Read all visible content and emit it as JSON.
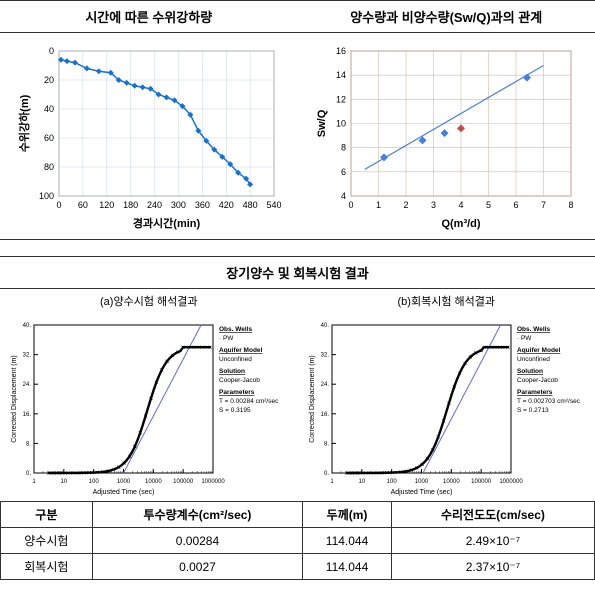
{
  "top": {
    "chart1": {
      "title": "시간에 따른 수위강하량",
      "type": "line",
      "xlabel": "경과시간(min)",
      "ylabel": "수위강하(m)",
      "xlim": [
        0,
        540
      ],
      "xtick_step": 60,
      "ylim_top": 0,
      "ylim_bottom": 100,
      "ytick_step": 20,
      "line_color": "#1f6fc4",
      "grid_color": "#c7d6e6",
      "background": "#ffffff",
      "points": [
        [
          5,
          6
        ],
        [
          20,
          7
        ],
        [
          40,
          8
        ],
        [
          70,
          12
        ],
        [
          100,
          14
        ],
        [
          130,
          15
        ],
        [
          150,
          20
        ],
        [
          170,
          22
        ],
        [
          190,
          24
        ],
        [
          210,
          25
        ],
        [
          230,
          26
        ],
        [
          250,
          30
        ],
        [
          270,
          32
        ],
        [
          290,
          34
        ],
        [
          310,
          38
        ],
        [
          330,
          44
        ],
        [
          350,
          55
        ],
        [
          370,
          62
        ],
        [
          390,
          68
        ],
        [
          410,
          73
        ],
        [
          430,
          78
        ],
        [
          450,
          84
        ],
        [
          470,
          88
        ],
        [
          480,
          92
        ]
      ]
    },
    "chart2": {
      "title": "양수량과 비양수량(Sw/Q)과의 관계",
      "type": "scatter-line",
      "xlabel": "Q(m³/d)",
      "ylabel": "Sw/Q",
      "xlim": [
        0,
        8
      ],
      "xtick_step": 1,
      "ylim": [
        4,
        16
      ],
      "ytick_step": 2,
      "grid_color": "#d9b9a6",
      "axis_color": "#888888",
      "background": "#ffffff",
      "blue_points": [
        [
          1.2,
          7.2
        ],
        [
          2.6,
          8.6
        ],
        [
          3.4,
          9.2
        ],
        [
          6.4,
          13.8
        ]
      ],
      "red_points": [
        [
          4.0,
          9.6
        ]
      ],
      "blue_color": "#4a7fd6",
      "red_color": "#c0504d",
      "fit_line": {
        "x1": 0.5,
        "y1": 6.2,
        "x2": 7.0,
        "y2": 14.8,
        "color": "#4a7fd6"
      }
    }
  },
  "section2": {
    "header": "장기양수 및 회복시험 결과",
    "sub_a": "(a)양수시험 해석결과",
    "sub_b": "(b)회복시험 해석결과",
    "graph_style": {
      "axis_color": "#000000",
      "data_color": "#000000",
      "fit_color": "#5b6fc9",
      "background": "#ffffff",
      "xlabel": "Adjusted Time (sec)",
      "ylabel": "Corrected Displacement (m)",
      "x_decades": [
        1,
        10,
        100,
        1000,
        10000,
        100000,
        1000000
      ],
      "y_range": [
        0,
        40
      ],
      "y_tick_step": 8
    },
    "params_a": {
      "obs_h": "Obs. Wells",
      "obs_v": "· PW",
      "aq_h": "Aquifer Model",
      "aq_v": "Unconfined",
      "sol_h": "Solution",
      "sol_v": "Cooper-Jacob",
      "par_h": "Parameters",
      "par_v1": "T = 0.00284 cm²/sec",
      "par_v2": "S = 0.3195"
    },
    "params_b": {
      "obs_h": "Obs. Wells",
      "obs_v": "· PW",
      "aq_h": "Aquifer Model",
      "aq_v": "Unconfined",
      "sol_h": "Solution",
      "sol_v": "Cooper-Jacob",
      "par_h": "Parameters",
      "par_v1": "T = 0.002703 cm²/sec",
      "par_v2": "S = 0.2713"
    },
    "table": {
      "headers": [
        "구분",
        "투수량계수(cm²/sec)",
        "두께(m)",
        "수리전도도(cm/sec)"
      ],
      "rows": [
        [
          "양수시험",
          "0.00284",
          "114.044",
          "2.49×10⁻⁷"
        ],
        [
          "회복시험",
          "0.0027",
          "114.044",
          "2.37×10⁻⁷"
        ]
      ]
    }
  }
}
